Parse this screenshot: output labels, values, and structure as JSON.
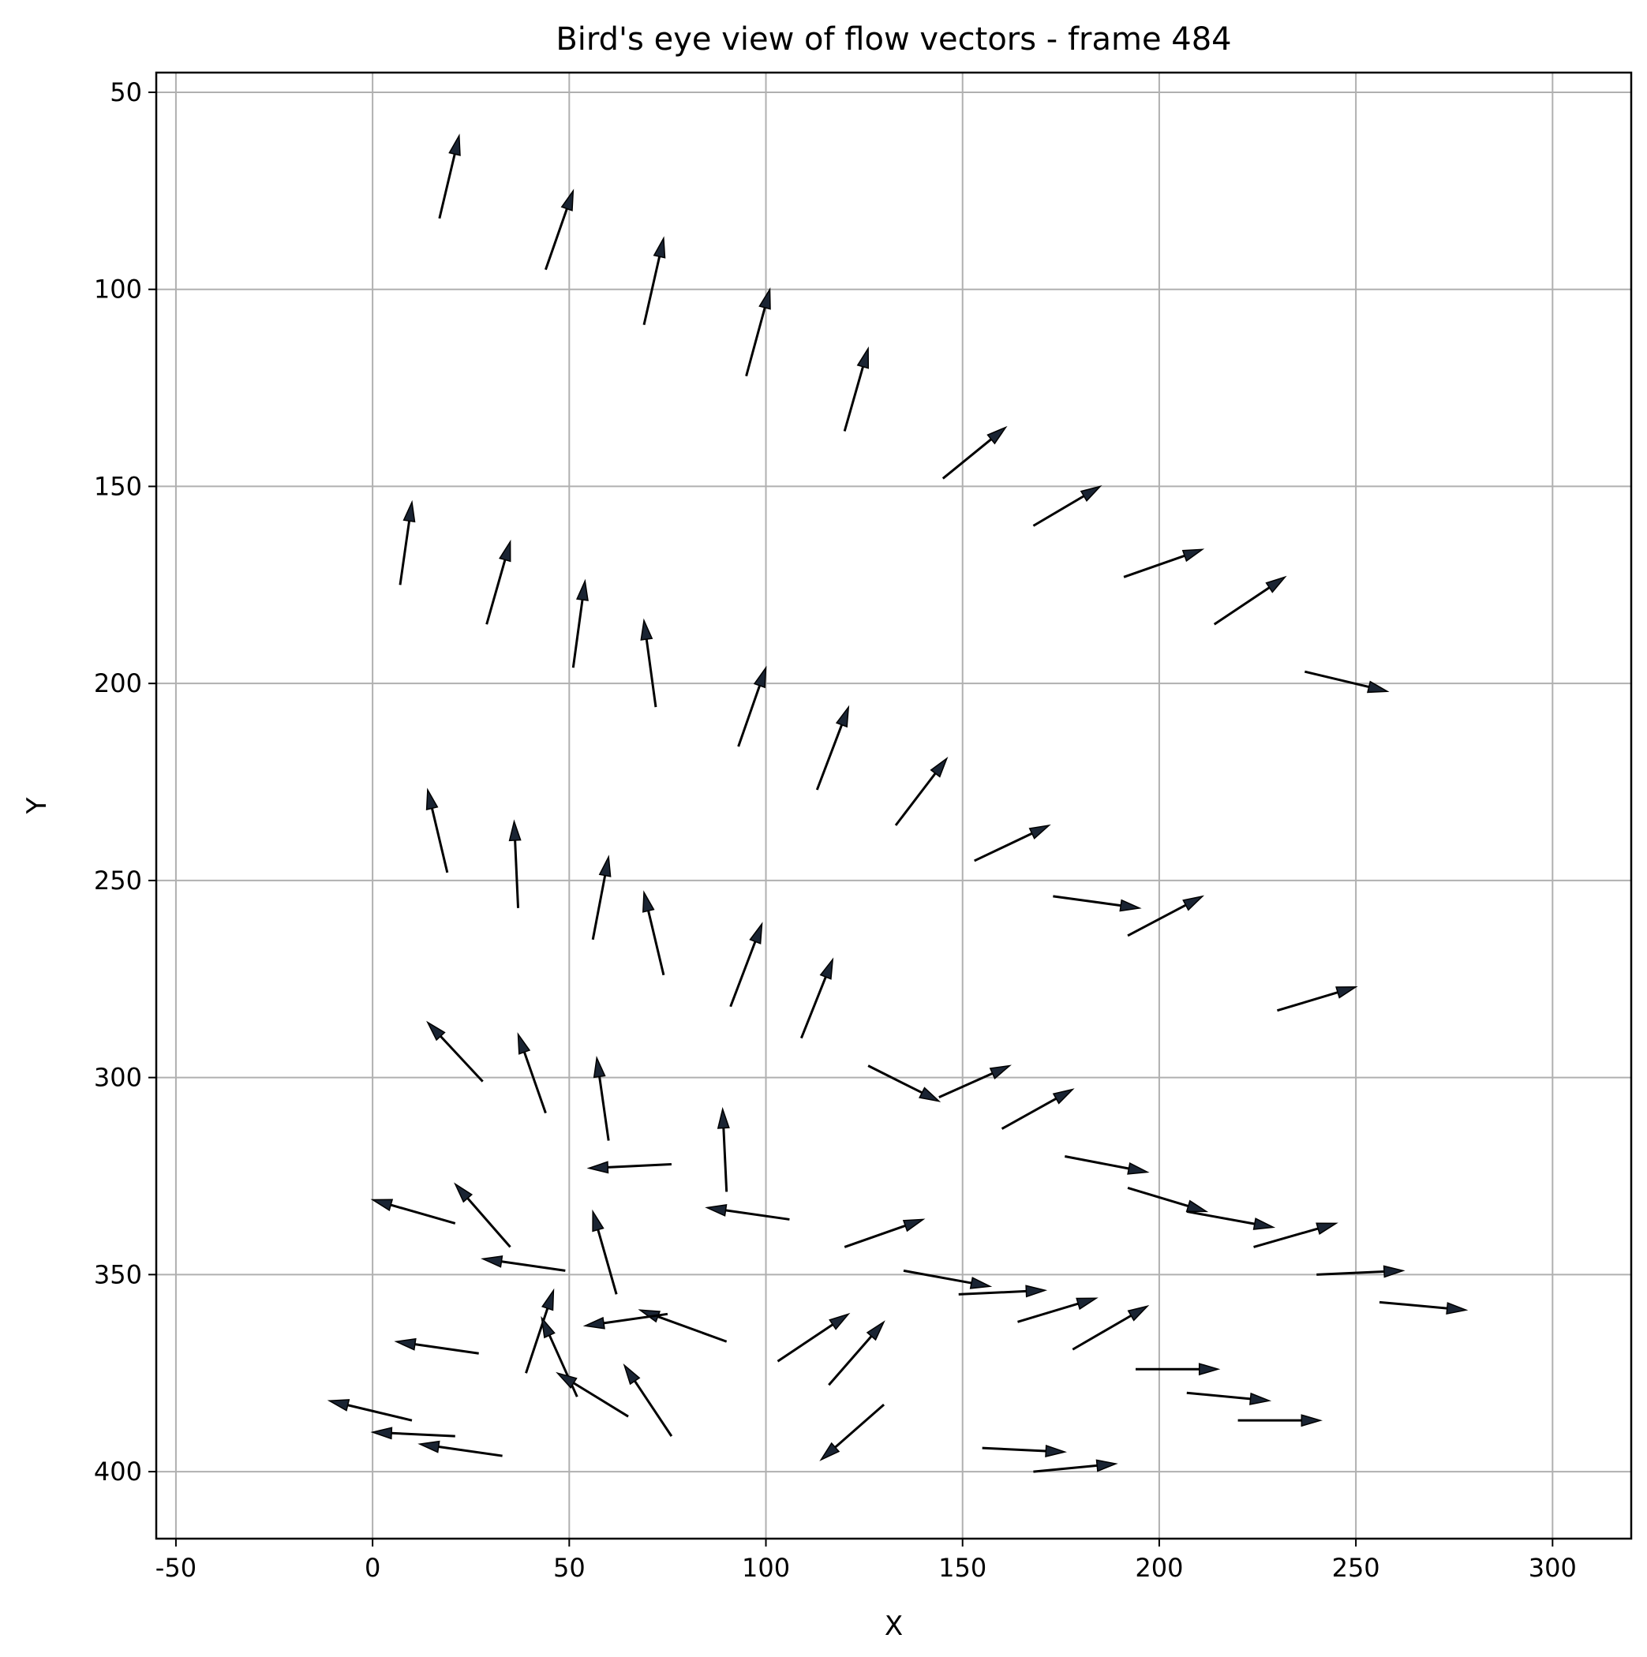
{
  "chart_data": {
    "type": "quiver",
    "title": "Bird's eye view of flow vectors - frame 484",
    "xlabel": "X",
    "ylabel": "Y",
    "xlim": [
      -55,
      320
    ],
    "ylim": [
      417,
      45
    ],
    "y_inverted": true,
    "xticks": [
      -50,
      0,
      50,
      100,
      150,
      200,
      250,
      300
    ],
    "yticks": [
      50,
      100,
      150,
      200,
      250,
      300,
      350,
      400
    ],
    "grid": true,
    "vectors": [
      {
        "x": 17,
        "y": 82,
        "dx": 5,
        "dy": -21
      },
      {
        "x": 44,
        "y": 95,
        "dx": 7,
        "dy": -20
      },
      {
        "x": 69,
        "y": 109,
        "dx": 5,
        "dy": -22
      },
      {
        "x": 95,
        "y": 122,
        "dx": 6,
        "dy": -22
      },
      {
        "x": 120,
        "y": 136,
        "dx": 6,
        "dy": -21
      },
      {
        "x": 145,
        "y": 148,
        "dx": 16,
        "dy": -13
      },
      {
        "x": 168,
        "y": 160,
        "dx": 17,
        "dy": -10
      },
      {
        "x": 191,
        "y": 173,
        "dx": 20,
        "dy": -7
      },
      {
        "x": 214,
        "y": 185,
        "dx": 18,
        "dy": -12
      },
      {
        "x": 237,
        "y": 197,
        "dx": 21,
        "dy": 5
      },
      {
        "x": 7,
        "y": 175,
        "dx": 3,
        "dy": -21
      },
      {
        "x": 29,
        "y": 185,
        "dx": 6,
        "dy": -21
      },
      {
        "x": 51,
        "y": 196,
        "dx": 3,
        "dy": -22
      },
      {
        "x": 72,
        "y": 206,
        "dx": -3,
        "dy": -22
      },
      {
        "x": 93,
        "y": 216,
        "dx": 7,
        "dy": -20
      },
      {
        "x": 113,
        "y": 227,
        "dx": 8,
        "dy": -21
      },
      {
        "x": 133,
        "y": 236,
        "dx": 13,
        "dy": -17
      },
      {
        "x": 153,
        "y": 245,
        "dx": 19,
        "dy": -9
      },
      {
        "x": 173,
        "y": 254,
        "dx": 22,
        "dy": 3
      },
      {
        "x": 192,
        "y": 264,
        "dx": 19,
        "dy": -10
      },
      {
        "x": 19,
        "y": 248,
        "dx": -5,
        "dy": -21
      },
      {
        "x": 37,
        "y": 257,
        "dx": -1,
        "dy": -22
      },
      {
        "x": 56,
        "y": 265,
        "dx": 4,
        "dy": -21
      },
      {
        "x": 74,
        "y": 274,
        "dx": -5,
        "dy": -21
      },
      {
        "x": 91,
        "y": 282,
        "dx": 8,
        "dy": -21
      },
      {
        "x": 109,
        "y": 290,
        "dx": 8,
        "dy": -20
      },
      {
        "x": 230,
        "y": 283,
        "dx": 20,
        "dy": -6
      },
      {
        "x": 28,
        "y": 301,
        "dx": -14,
        "dy": -15
      },
      {
        "x": 44,
        "y": 309,
        "dx": -7,
        "dy": -20
      },
      {
        "x": 60,
        "y": 316,
        "dx": -3,
        "dy": -21
      },
      {
        "x": 76,
        "y": 322,
        "dx": -21,
        "dy": 1
      },
      {
        "x": 90,
        "y": 329,
        "dx": -1,
        "dy": -21
      },
      {
        "x": 126,
        "y": 297,
        "dx": 18,
        "dy": 9
      },
      {
        "x": 144,
        "y": 305,
        "dx": 18,
        "dy": -8
      },
      {
        "x": 160,
        "y": 313,
        "dx": 18,
        "dy": -10
      },
      {
        "x": 176,
        "y": 320,
        "dx": 21,
        "dy": 4
      },
      {
        "x": 192,
        "y": 328,
        "dx": 20,
        "dy": 6
      },
      {
        "x": 21,
        "y": 337,
        "dx": -21,
        "dy": -6
      },
      {
        "x": 35,
        "y": 343,
        "dx": -14,
        "dy": -16
      },
      {
        "x": 49,
        "y": 349,
        "dx": -21,
        "dy": -3
      },
      {
        "x": 62,
        "y": 355,
        "dx": -6,
        "dy": -21
      },
      {
        "x": 106,
        "y": 336,
        "dx": -21,
        "dy": -3
      },
      {
        "x": 120,
        "y": 343,
        "dx": 20,
        "dy": -7
      },
      {
        "x": 135,
        "y": 349,
        "dx": 22,
        "dy": 4
      },
      {
        "x": 149,
        "y": 355,
        "dx": 22,
        "dy": -1
      },
      {
        "x": 164,
        "y": 362,
        "dx": 20,
        "dy": -6
      },
      {
        "x": 178,
        "y": 369,
        "dx": 19,
        "dy": -11
      },
      {
        "x": 207,
        "y": 334,
        "dx": 22,
        "dy": 4
      },
      {
        "x": 224,
        "y": 343,
        "dx": 21,
        "dy": -6
      },
      {
        "x": 240,
        "y": 350,
        "dx": 22,
        "dy": -1
      },
      {
        "x": 256,
        "y": 357,
        "dx": 22,
        "dy": 2
      },
      {
        "x": 27,
        "y": 370,
        "dx": -21,
        "dy": -3
      },
      {
        "x": 39,
        "y": 375,
        "dx": 7,
        "dy": -21
      },
      {
        "x": 52,
        "y": 381,
        "dx": -9,
        "dy": -20
      },
      {
        "x": 65,
        "y": 386,
        "dx": -18,
        "dy": -11
      },
      {
        "x": 76,
        "y": 391,
        "dx": -12,
        "dy": -18
      },
      {
        "x": 90,
        "y": 367,
        "dx": -22,
        "dy": -8
      },
      {
        "x": 75,
        "y": 360,
        "dx": -21,
        "dy": 3
      },
      {
        "x": 103,
        "y": 372,
        "dx": 18,
        "dy": -12
      },
      {
        "x": 116,
        "y": 378,
        "dx": 14,
        "dy": -16
      },
      {
        "x": 130,
        "y": 383,
        "dx": -16,
        "dy": 14
      },
      {
        "x": 194,
        "y": 374,
        "dx": 21,
        "dy": 0
      },
      {
        "x": 207,
        "y": 380,
        "dx": 21,
        "dy": 2
      },
      {
        "x": 220,
        "y": 387,
        "dx": 21,
        "dy": 0
      },
      {
        "x": 155,
        "y": 394,
        "dx": 21,
        "dy": 1
      },
      {
        "x": 168,
        "y": 400,
        "dx": 21,
        "dy": -2
      },
      {
        "x": 10,
        "y": 387,
        "dx": -21,
        "dy": -5
      },
      {
        "x": 21,
        "y": 391,
        "dx": -21,
        "dy": -1
      },
      {
        "x": 33,
        "y": 396,
        "dx": -21,
        "dy": -3
      }
    ]
  }
}
